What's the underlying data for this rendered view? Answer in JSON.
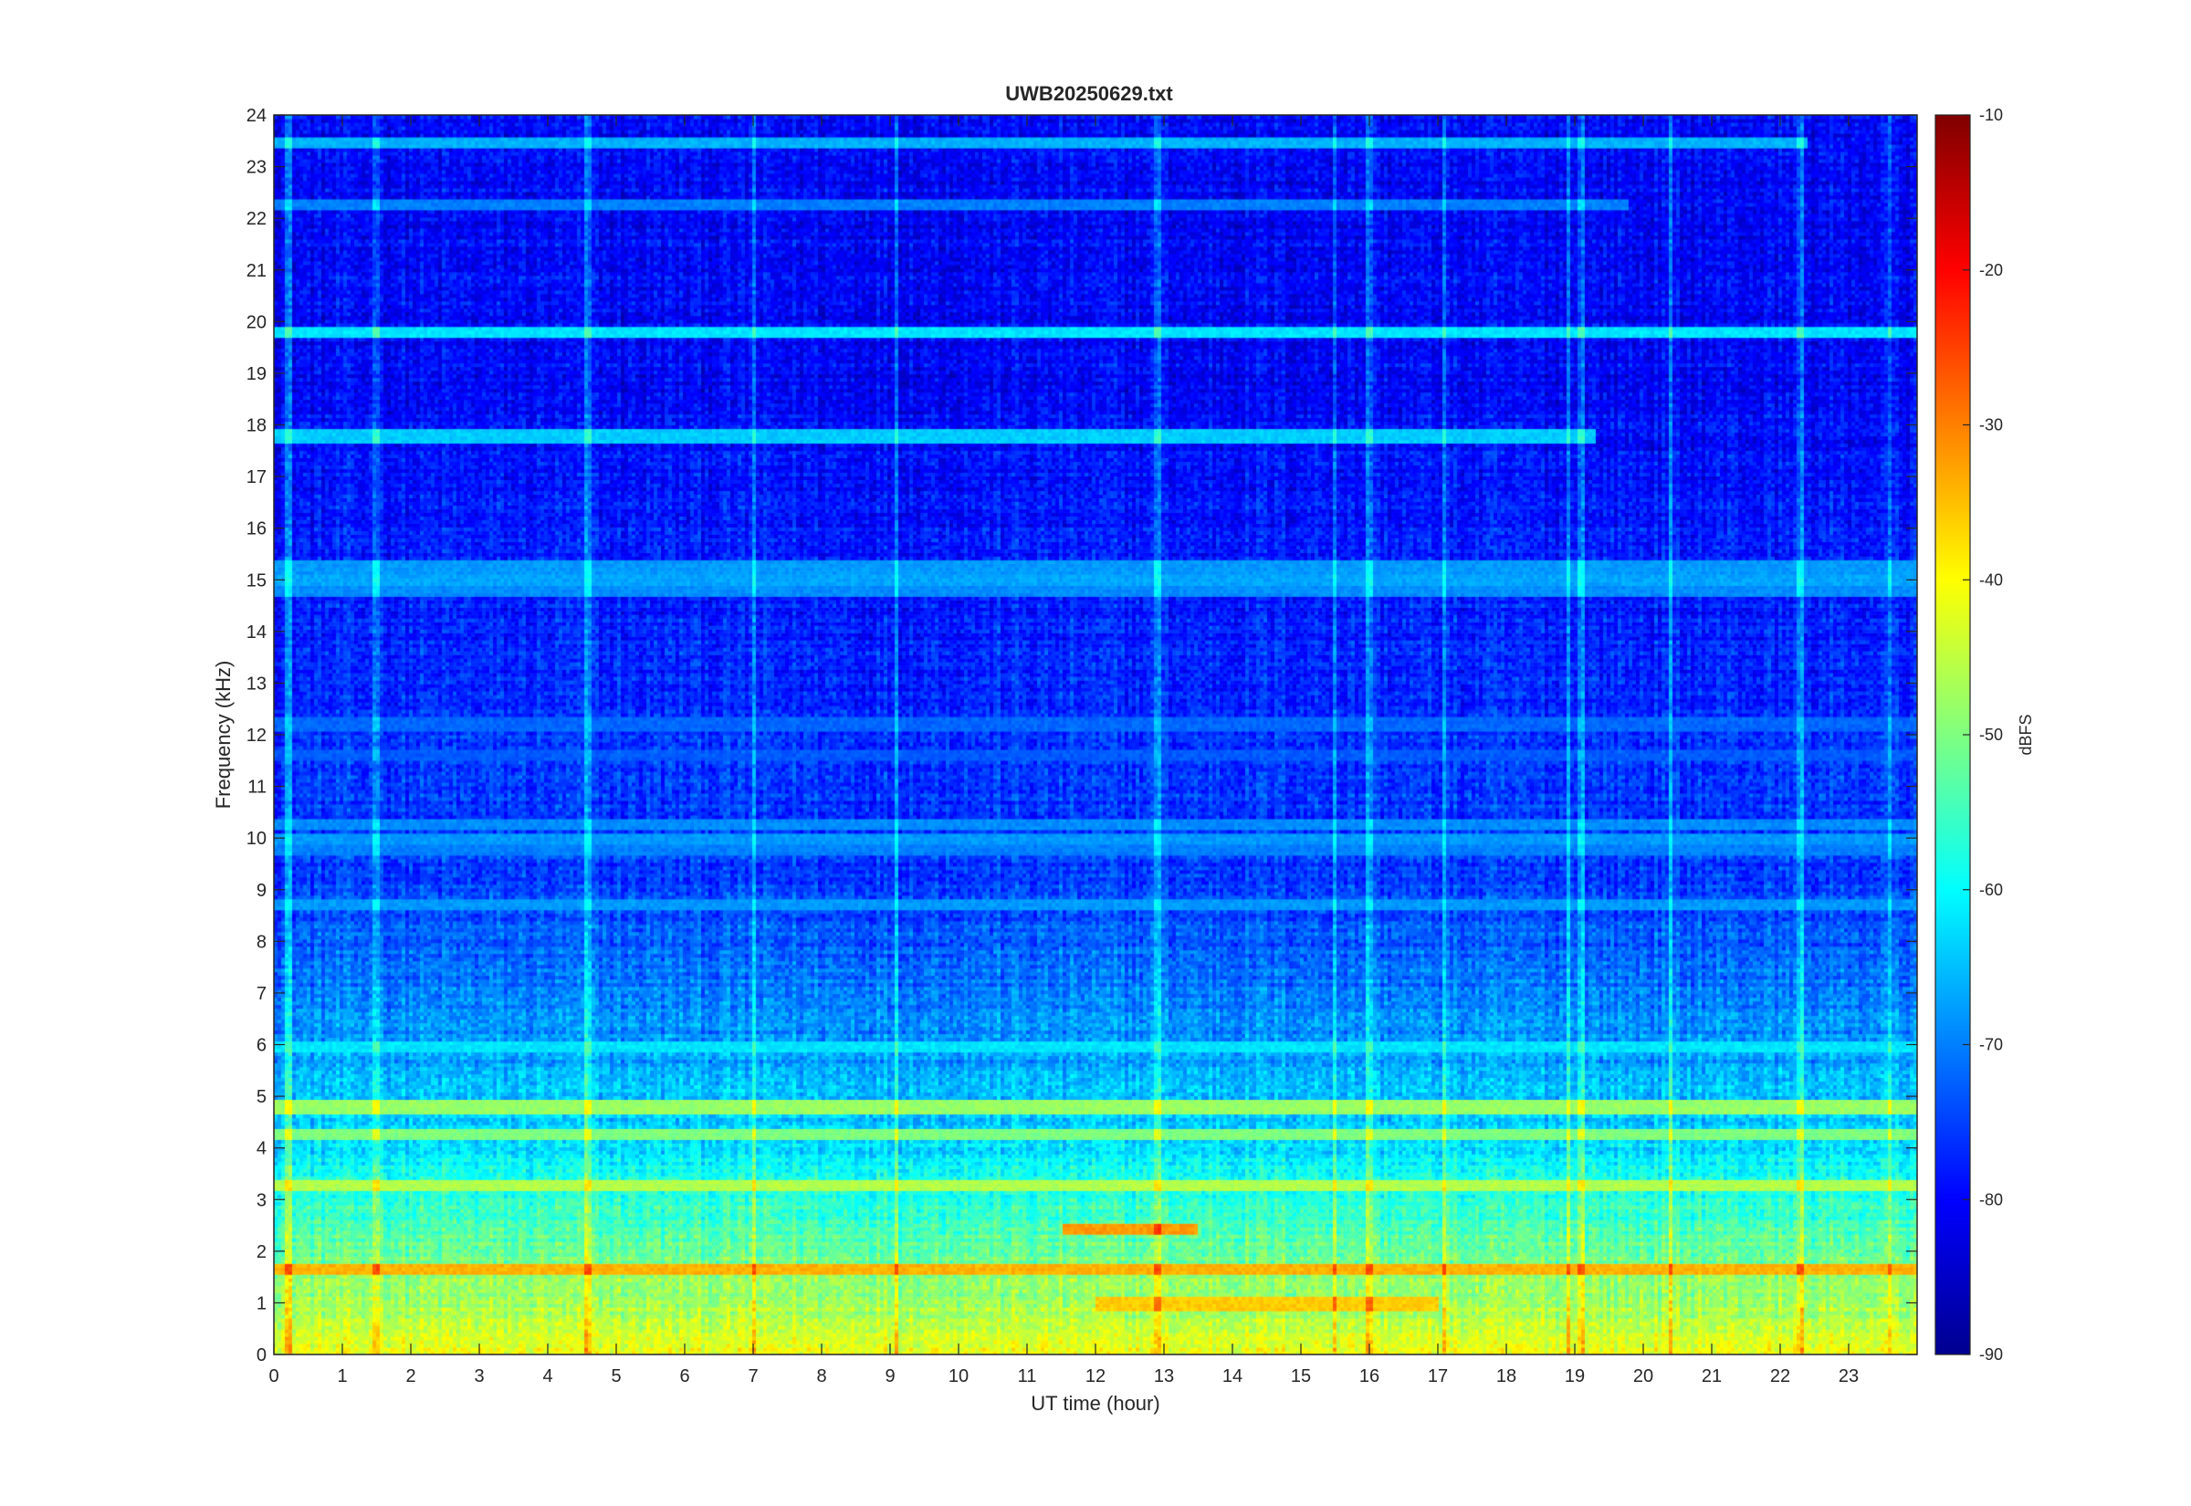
{
  "chart_data": {
    "type": "heatmap",
    "title": "UWB20250629.txt",
    "xlabel": "UT time (hour)",
    "ylabel": "Frequency (kHz)",
    "xlim": [
      0,
      24
    ],
    "ylim": [
      0,
      24
    ],
    "x_ticks": [
      "0",
      "1",
      "2",
      "3",
      "4",
      "5",
      "6",
      "7",
      "8",
      "9",
      "10",
      "11",
      "12",
      "13",
      "14",
      "15",
      "16",
      "17",
      "18",
      "19",
      "20",
      "21",
      "22",
      "23"
    ],
    "y_ticks": [
      "0",
      "1",
      "2",
      "3",
      "4",
      "5",
      "6",
      "7",
      "8",
      "9",
      "10",
      "11",
      "12",
      "13",
      "14",
      "15",
      "16",
      "17",
      "18",
      "19",
      "20",
      "21",
      "22",
      "23",
      "24"
    ],
    "colorbar": {
      "label": "dBFS",
      "colormap": "jet",
      "range": [
        -90,
        -10
      ],
      "ticks": [
        "-10",
        "-20",
        "-30",
        "-40",
        "-50",
        "-60",
        "-70",
        "-80",
        "-90"
      ]
    },
    "background_level_dBFS": [
      {
        "freq_khz": [
          0,
          2
        ],
        "level": -42
      },
      {
        "freq_khz": [
          2,
          4
        ],
        "level": -52
      },
      {
        "freq_khz": [
          4,
          6
        ],
        "level": -62
      },
      {
        "freq_khz": [
          6,
          9
        ],
        "level": -68
      },
      {
        "freq_khz": [
          9,
          19
        ],
        "level": -75
      },
      {
        "freq_khz": [
          19,
          24
        ],
        "level": -80
      }
    ],
    "persistent_lines": [
      {
        "freq_khz": 19.8,
        "t_start": 0,
        "t_end": 24,
        "level": -62
      },
      {
        "freq_khz": 17.8,
        "t_start": 0,
        "t_end": 19.3,
        "level": -64
      },
      {
        "freq_khz": 23.45,
        "t_start": 0,
        "t_end": 22.4,
        "level": -66
      },
      {
        "freq_khz": 22.25,
        "t_start": 0,
        "t_end": 19.8,
        "level": -70
      },
      {
        "freq_khz": 15.25,
        "t_start": 0,
        "t_end": 24,
        "level": -68
      },
      {
        "freq_khz": 15.0,
        "t_start": 0,
        "t_end": 24,
        "level": -67
      },
      {
        "freq_khz": 14.8,
        "t_start": 0,
        "t_end": 24,
        "level": -69
      },
      {
        "freq_khz": 10.25,
        "t_start": 0,
        "t_end": 24,
        "level": -69
      },
      {
        "freq_khz": 10.0,
        "t_start": 0,
        "t_end": 24,
        "level": -68
      },
      {
        "freq_khz": 9.8,
        "t_start": 0,
        "t_end": 24,
        "level": -70
      },
      {
        "freq_khz": 12.2,
        "t_start": 0,
        "t_end": 24,
        "level": -72
      },
      {
        "freq_khz": 11.6,
        "t_start": 0,
        "t_end": 24,
        "level": -73
      },
      {
        "freq_khz": 8.7,
        "t_start": 0,
        "t_end": 24,
        "level": -68
      },
      {
        "freq_khz": 5.95,
        "t_start": 0,
        "t_end": 24,
        "level": -62
      },
      {
        "freq_khz": 4.8,
        "t_start": 0,
        "t_end": 24,
        "level": -48
      },
      {
        "freq_khz": 4.25,
        "t_start": 0,
        "t_end": 24,
        "level": -50
      },
      {
        "freq_khz": 3.3,
        "t_start": 0,
        "t_end": 24,
        "level": -46
      },
      {
        "freq_khz": 2.45,
        "t_start": 11.5,
        "t_end": 13.5,
        "level": -32
      },
      {
        "freq_khz": 1.65,
        "t_start": 0,
        "t_end": 24,
        "level": -34
      },
      {
        "freq_khz": 1.0,
        "t_start": 12,
        "t_end": 17,
        "level": -36
      },
      {
        "freq_khz": 0.3,
        "t_start": 0,
        "t_end": 24,
        "level": -45
      }
    ],
    "vertical_spikes_hour": [
      0.2,
      1.5,
      4.6,
      7.0,
      9.1,
      12.9,
      15.5,
      16.0,
      17.1,
      18.9,
      19.1,
      20.4,
      22.3,
      23.6
    ]
  }
}
